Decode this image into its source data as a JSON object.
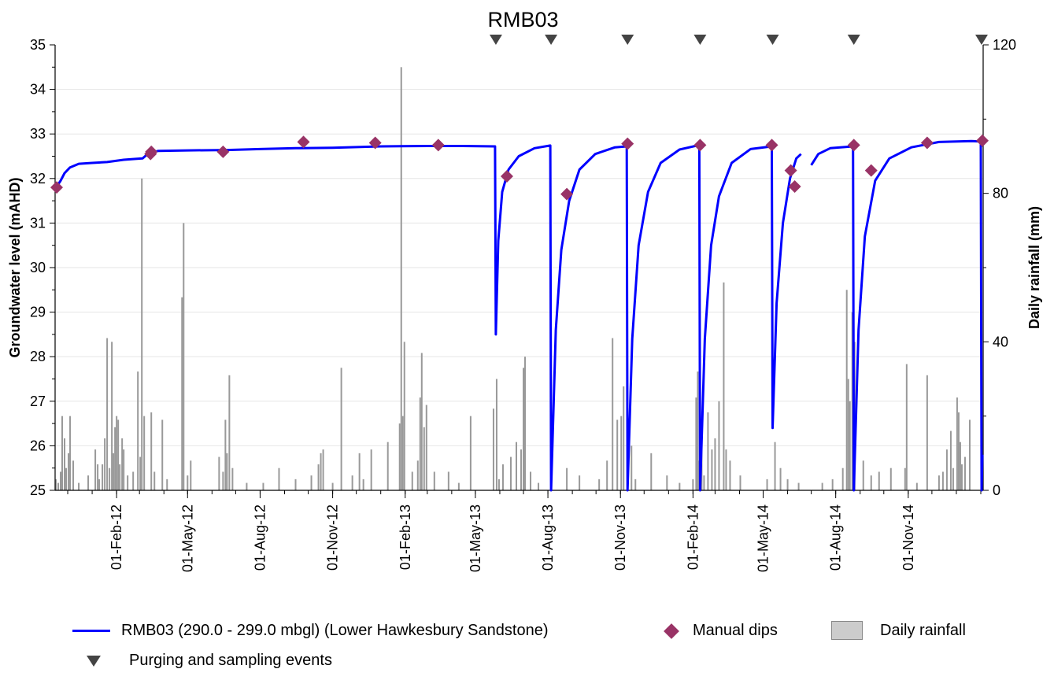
{
  "chart_data": {
    "type": "line",
    "title": "RMB03",
    "ylabel": "Groundwater level (mAHD)",
    "y2label": "Daily rainfall (mm)",
    "ylim": [
      25,
      35
    ],
    "y2lim": [
      0,
      120
    ],
    "y_ticks": [
      "25",
      "26",
      "27",
      "28",
      "29",
      "30",
      "31",
      "32",
      "33",
      "34",
      "35"
    ],
    "y2_ticks": [
      "0",
      "40",
      "80",
      "120"
    ],
    "xlim": [
      "2011-11-15",
      "2015-02-04"
    ],
    "x_ticks": [
      {
        "date": "2012-02-01",
        "label": "01-Feb-12"
      },
      {
        "date": "2012-05-01",
        "label": "01-May-12"
      },
      {
        "date": "2012-08-01",
        "label": "01-Aug-12"
      },
      {
        "date": "2012-11-01",
        "label": "01-Nov-12"
      },
      {
        "date": "2013-02-01",
        "label": "01-Feb-13"
      },
      {
        "date": "2013-05-01",
        "label": "01-May-13"
      },
      {
        "date": "2013-08-01",
        "label": "01-Aug-13"
      },
      {
        "date": "2013-11-01",
        "label": "01-Nov-13"
      },
      {
        "date": "2014-02-01",
        "label": "01-Feb-14"
      },
      {
        "date": "2014-05-01",
        "label": "01-May-14"
      },
      {
        "date": "2014-08-01",
        "label": "01-Aug-14"
      },
      {
        "date": "2014-11-01",
        "label": "01-Nov-14"
      }
    ],
    "legend_position": "bottom",
    "series": [
      {
        "name": "RMB03 (290.0 - 299.0 mbgl) (Lower Hawkesbury Sandstone)",
        "kind": "line",
        "color": "#0000ff",
        "points": [
          [
            "2011-11-17",
            31.82
          ],
          [
            "2011-11-22",
            31.95
          ],
          [
            "2011-11-27",
            32.12
          ],
          [
            "2011-12-04",
            32.25
          ],
          [
            "2011-12-15",
            32.33
          ],
          [
            "2012-01-01",
            32.35
          ],
          [
            "2012-01-20",
            32.37
          ],
          [
            "2012-02-10",
            32.42
          ],
          [
            "2012-02-25",
            32.44
          ],
          [
            "2012-03-05",
            32.45
          ],
          [
            "2012-03-12",
            32.56
          ],
          [
            "2012-03-25",
            32.62
          ],
          [
            "2012-05-01",
            32.63
          ],
          [
            "2012-06-20",
            32.64
          ],
          [
            "2012-08-01",
            32.66
          ],
          [
            "2012-09-15",
            32.68
          ],
          [
            "2012-11-01",
            32.69
          ],
          [
            "2013-01-01",
            32.72
          ],
          [
            "2013-03-01",
            32.73
          ],
          [
            "2013-04-15",
            32.73
          ],
          [
            "2013-05-26",
            32.72
          ],
          [
            "2013-05-27",
            28.5
          ],
          [
            "2013-05-30",
            30.6
          ],
          [
            "2013-06-04",
            31.7
          ],
          [
            "2013-06-12",
            32.2
          ],
          [
            "2013-06-25",
            32.5
          ],
          [
            "2013-07-15",
            32.68
          ],
          [
            "2013-08-04",
            32.74
          ],
          [
            "2013-08-05",
            25.0
          ],
          [
            "2013-08-11",
            28.6
          ],
          [
            "2013-08-18",
            30.4
          ],
          [
            "2013-08-28",
            31.5
          ],
          [
            "2013-09-10",
            32.2
          ],
          [
            "2013-09-30",
            32.55
          ],
          [
            "2013-10-25",
            32.7
          ],
          [
            "2013-11-09",
            32.72
          ],
          [
            "2013-11-10",
            25.0
          ],
          [
            "2013-11-16",
            28.4
          ],
          [
            "2013-11-24",
            30.5
          ],
          [
            "2013-12-06",
            31.7
          ],
          [
            "2013-12-22",
            32.35
          ],
          [
            "2014-01-15",
            32.65
          ],
          [
            "2014-02-09",
            32.75
          ],
          [
            "2014-02-10",
            25.0
          ],
          [
            "2014-02-16",
            28.4
          ],
          [
            "2014-02-24",
            30.5
          ],
          [
            "2014-03-06",
            31.6
          ],
          [
            "2014-03-22",
            32.35
          ],
          [
            "2014-04-15",
            32.66
          ],
          [
            "2014-05-12",
            32.72
          ],
          [
            "2014-05-13",
            26.4
          ],
          [
            "2014-05-18",
            29.2
          ],
          [
            "2014-05-26",
            31.0
          ],
          [
            "2014-06-04",
            32.0
          ],
          [
            "2014-06-12",
            32.45
          ],
          [
            "2014-06-18",
            32.55
          ],
          [
            "2014-06-25",
            null
          ],
          [
            "2014-07-01",
            32.3
          ],
          [
            "2014-07-10",
            32.55
          ],
          [
            "2014-07-25",
            32.68
          ],
          [
            "2014-08-23",
            32.72
          ],
          [
            "2014-08-24",
            25.0
          ],
          [
            "2014-08-30",
            28.6
          ],
          [
            "2014-09-07",
            30.7
          ],
          [
            "2014-09-20",
            31.95
          ],
          [
            "2014-10-08",
            32.45
          ],
          [
            "2014-11-05",
            32.7
          ],
          [
            "2014-12-10",
            32.82
          ],
          [
            "2015-01-20",
            32.84
          ],
          [
            "2015-02-01",
            32.83
          ],
          [
            "2015-02-02",
            25.0
          ],
          [
            "2015-02-03",
            25.8
          ]
        ]
      },
      {
        "name": "Manual dips",
        "kind": "scatter",
        "marker": "diamond",
        "color": "#993366",
        "points": [
          [
            "2011-11-17",
            31.8
          ],
          [
            "2012-03-15",
            32.55
          ],
          [
            "2012-03-16",
            32.6
          ],
          [
            "2012-06-15",
            32.6
          ],
          [
            "2012-09-25",
            32.82
          ],
          [
            "2012-12-25",
            32.8
          ],
          [
            "2013-03-15",
            32.75
          ],
          [
            "2013-06-10",
            32.05
          ],
          [
            "2013-08-25",
            31.65
          ],
          [
            "2013-11-10",
            32.78
          ],
          [
            "2014-02-10",
            32.75
          ],
          [
            "2014-05-12",
            32.75
          ],
          [
            "2014-06-05",
            32.18
          ],
          [
            "2014-06-10",
            31.82
          ],
          [
            "2014-08-24",
            32.75
          ],
          [
            "2014-09-15",
            32.18
          ],
          [
            "2014-11-25",
            32.8
          ],
          [
            "2015-02-03",
            32.85
          ]
        ]
      },
      {
        "name": "Daily rainfall",
        "kind": "bar",
        "axis": "y2",
        "color": "#999999",
        "points": [
          [
            "2011-11-16",
            3
          ],
          [
            "2011-11-19",
            2
          ],
          [
            "2011-11-22",
            5
          ],
          [
            "2011-11-24",
            20
          ],
          [
            "2011-11-27",
            14
          ],
          [
            "2011-11-29",
            6
          ],
          [
            "2011-12-02",
            10
          ],
          [
            "2011-12-04",
            20
          ],
          [
            "2011-12-08",
            8
          ],
          [
            "2011-12-15",
            2
          ],
          [
            "2011-12-27",
            4
          ],
          [
            "2012-01-05",
            11
          ],
          [
            "2012-01-08",
            7
          ],
          [
            "2012-01-10",
            3
          ],
          [
            "2012-01-14",
            7
          ],
          [
            "2012-01-17",
            14
          ],
          [
            "2012-01-20",
            41
          ],
          [
            "2012-01-23",
            6
          ],
          [
            "2012-01-26",
            40
          ],
          [
            "2012-01-28",
            10
          ],
          [
            "2012-01-30",
            17
          ],
          [
            "2012-02-01",
            20
          ],
          [
            "2012-02-03",
            19
          ],
          [
            "2012-02-05",
            7
          ],
          [
            "2012-02-08",
            14
          ],
          [
            "2012-02-10",
            11
          ],
          [
            "2012-02-15",
            4
          ],
          [
            "2012-02-22",
            5
          ],
          [
            "2012-02-28",
            32
          ],
          [
            "2012-03-02",
            9
          ],
          [
            "2012-03-04",
            84
          ],
          [
            "2012-03-07",
            20
          ],
          [
            "2012-03-16",
            21
          ],
          [
            "2012-03-20",
            5
          ],
          [
            "2012-03-30",
            19
          ],
          [
            "2012-04-05",
            3
          ],
          [
            "2012-04-24",
            52
          ],
          [
            "2012-04-26",
            72
          ],
          [
            "2012-05-01",
            4
          ],
          [
            "2012-05-05",
            8
          ],
          [
            "2012-06-10",
            9
          ],
          [
            "2012-06-15",
            5
          ],
          [
            "2012-06-18",
            19
          ],
          [
            "2012-06-20",
            10
          ],
          [
            "2012-06-23",
            31
          ],
          [
            "2012-06-27",
            6
          ],
          [
            "2012-07-15",
            2
          ],
          [
            "2012-08-05",
            2
          ],
          [
            "2012-08-25",
            6
          ],
          [
            "2012-09-15",
            3
          ],
          [
            "2012-10-05",
            4
          ],
          [
            "2012-10-14",
            7
          ],
          [
            "2012-10-17",
            10
          ],
          [
            "2012-10-20",
            11
          ],
          [
            "2012-11-01",
            2
          ],
          [
            "2012-11-12",
            33
          ],
          [
            "2012-11-26",
            4
          ],
          [
            "2012-12-05",
            10
          ],
          [
            "2012-12-10",
            3
          ],
          [
            "2012-12-20",
            11
          ],
          [
            "2013-01-10",
            13
          ],
          [
            "2013-01-25",
            18
          ],
          [
            "2013-01-27",
            114
          ],
          [
            "2013-01-29",
            20
          ],
          [
            "2013-01-31",
            40
          ],
          [
            "2013-02-10",
            5
          ],
          [
            "2013-02-17",
            8
          ],
          [
            "2013-02-20",
            25
          ],
          [
            "2013-02-22",
            37
          ],
          [
            "2013-02-25",
            17
          ],
          [
            "2013-02-28",
            23
          ],
          [
            "2013-03-10",
            5
          ],
          [
            "2013-03-28",
            5
          ],
          [
            "2013-04-10",
            2
          ],
          [
            "2013-04-25",
            20
          ],
          [
            "2013-05-24",
            22
          ],
          [
            "2013-05-28",
            30
          ],
          [
            "2013-05-31",
            3
          ],
          [
            "2013-06-05",
            7
          ],
          [
            "2013-06-15",
            9
          ],
          [
            "2013-06-22",
            13
          ],
          [
            "2013-06-28",
            11
          ],
          [
            "2013-07-01",
            33
          ],
          [
            "2013-07-03",
            36
          ],
          [
            "2013-07-10",
            5
          ],
          [
            "2013-07-20",
            2
          ],
          [
            "2013-08-25",
            6
          ],
          [
            "2013-09-10",
            4
          ],
          [
            "2013-10-05",
            3
          ],
          [
            "2013-10-15",
            8
          ],
          [
            "2013-10-22",
            41
          ],
          [
            "2013-10-28",
            19
          ],
          [
            "2013-11-02",
            20
          ],
          [
            "2013-11-05",
            28
          ],
          [
            "2013-11-10",
            14
          ],
          [
            "2013-11-15",
            12
          ],
          [
            "2013-11-20",
            3
          ],
          [
            "2013-12-10",
            10
          ],
          [
            "2013-12-30",
            4
          ],
          [
            "2014-01-15",
            2
          ],
          [
            "2014-02-01",
            3
          ],
          [
            "2014-02-05",
            25
          ],
          [
            "2014-02-07",
            32
          ],
          [
            "2014-02-09",
            8
          ],
          [
            "2014-02-12",
            19
          ],
          [
            "2014-02-15",
            4
          ],
          [
            "2014-02-20",
            21
          ],
          [
            "2014-02-25",
            11
          ],
          [
            "2014-03-01",
            14
          ],
          [
            "2014-03-06",
            24
          ],
          [
            "2014-03-12",
            56
          ],
          [
            "2014-03-15",
            11
          ],
          [
            "2014-03-20",
            8
          ],
          [
            "2014-04-02",
            4
          ],
          [
            "2014-05-06",
            3
          ],
          [
            "2014-05-16",
            13
          ],
          [
            "2014-05-23",
            6
          ],
          [
            "2014-06-01",
            3
          ],
          [
            "2014-06-15",
            2
          ],
          [
            "2014-07-15",
            2
          ],
          [
            "2014-07-28",
            3
          ],
          [
            "2014-08-10",
            6
          ],
          [
            "2014-08-15",
            54
          ],
          [
            "2014-08-17",
            30
          ],
          [
            "2014-08-19",
            24
          ],
          [
            "2014-08-22",
            48
          ],
          [
            "2014-08-25",
            40
          ],
          [
            "2014-09-05",
            8
          ],
          [
            "2014-09-15",
            4
          ],
          [
            "2014-09-25",
            5
          ],
          [
            "2014-10-10",
            6
          ],
          [
            "2014-10-28",
            6
          ],
          [
            "2014-10-30",
            34
          ],
          [
            "2014-11-12",
            2
          ],
          [
            "2014-11-25",
            31
          ],
          [
            "2014-12-10",
            4
          ],
          [
            "2014-12-15",
            5
          ],
          [
            "2014-12-20",
            11
          ],
          [
            "2014-12-25",
            16
          ],
          [
            "2014-12-28",
            6
          ],
          [
            "2015-01-02",
            25
          ],
          [
            "2015-01-04",
            21
          ],
          [
            "2015-01-06",
            13
          ],
          [
            "2015-01-08",
            7
          ],
          [
            "2015-01-12",
            9
          ],
          [
            "2015-01-18",
            19
          ]
        ]
      },
      {
        "name": "Purging and sampling events",
        "kind": "event-marker",
        "marker": "triangle-down",
        "color": "#444444",
        "dates": [
          "2013-05-27",
          "2013-08-05",
          "2013-11-10",
          "2014-02-10",
          "2014-05-13",
          "2014-08-24",
          "2015-02-02"
        ]
      }
    ]
  }
}
